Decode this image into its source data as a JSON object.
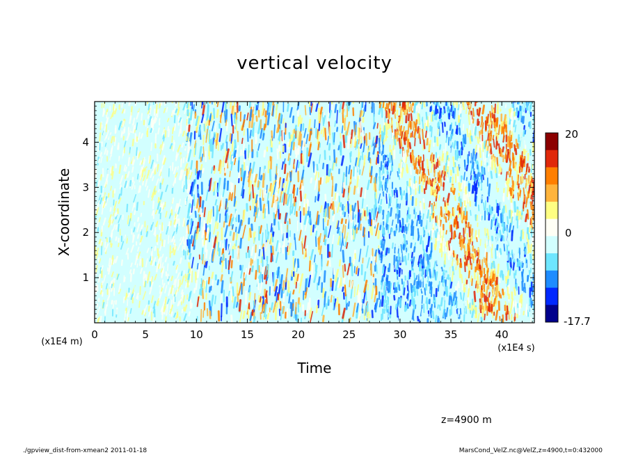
{
  "chart_data": {
    "type": "heatmap",
    "title": "vertical velocity",
    "xlabel": "Time",
    "ylabel": "X-coordinate",
    "x_unit": "(x1E4 s)",
    "y_unit": "(x1E4 m)",
    "xlim": [
      0,
      43.2
    ],
    "ylim": [
      0,
      4.9
    ],
    "x_ticks": [
      "0",
      "5",
      "10",
      "15",
      "20",
      "25",
      "30",
      "35",
      "40"
    ],
    "y_ticks": [
      "1",
      "2",
      "3",
      "4"
    ],
    "colorbar": {
      "max_label": "20",
      "zero_label": "0",
      "min_label": "-17.7",
      "levels": [
        20,
        16,
        12,
        8,
        4,
        0,
        -4,
        -8,
        -12,
        -16,
        -17.7
      ],
      "colors": [
        "#8c0000",
        "#e0280a",
        "#ff7f00",
        "#ffb43c",
        "#ffff82",
        "#fffff5",
        "#d2ffff",
        "#6ee6ff",
        "#1e8cff",
        "#0028ff",
        "#00008c"
      ]
    }
  },
  "annotations": {
    "level": "z=4900  m",
    "footer_left": "./gpview_dist-from-xmean2   2011-01-18",
    "footer_right": "MarsCond_VelZ.nc@VelZ,z=4900,t=0:432000"
  }
}
